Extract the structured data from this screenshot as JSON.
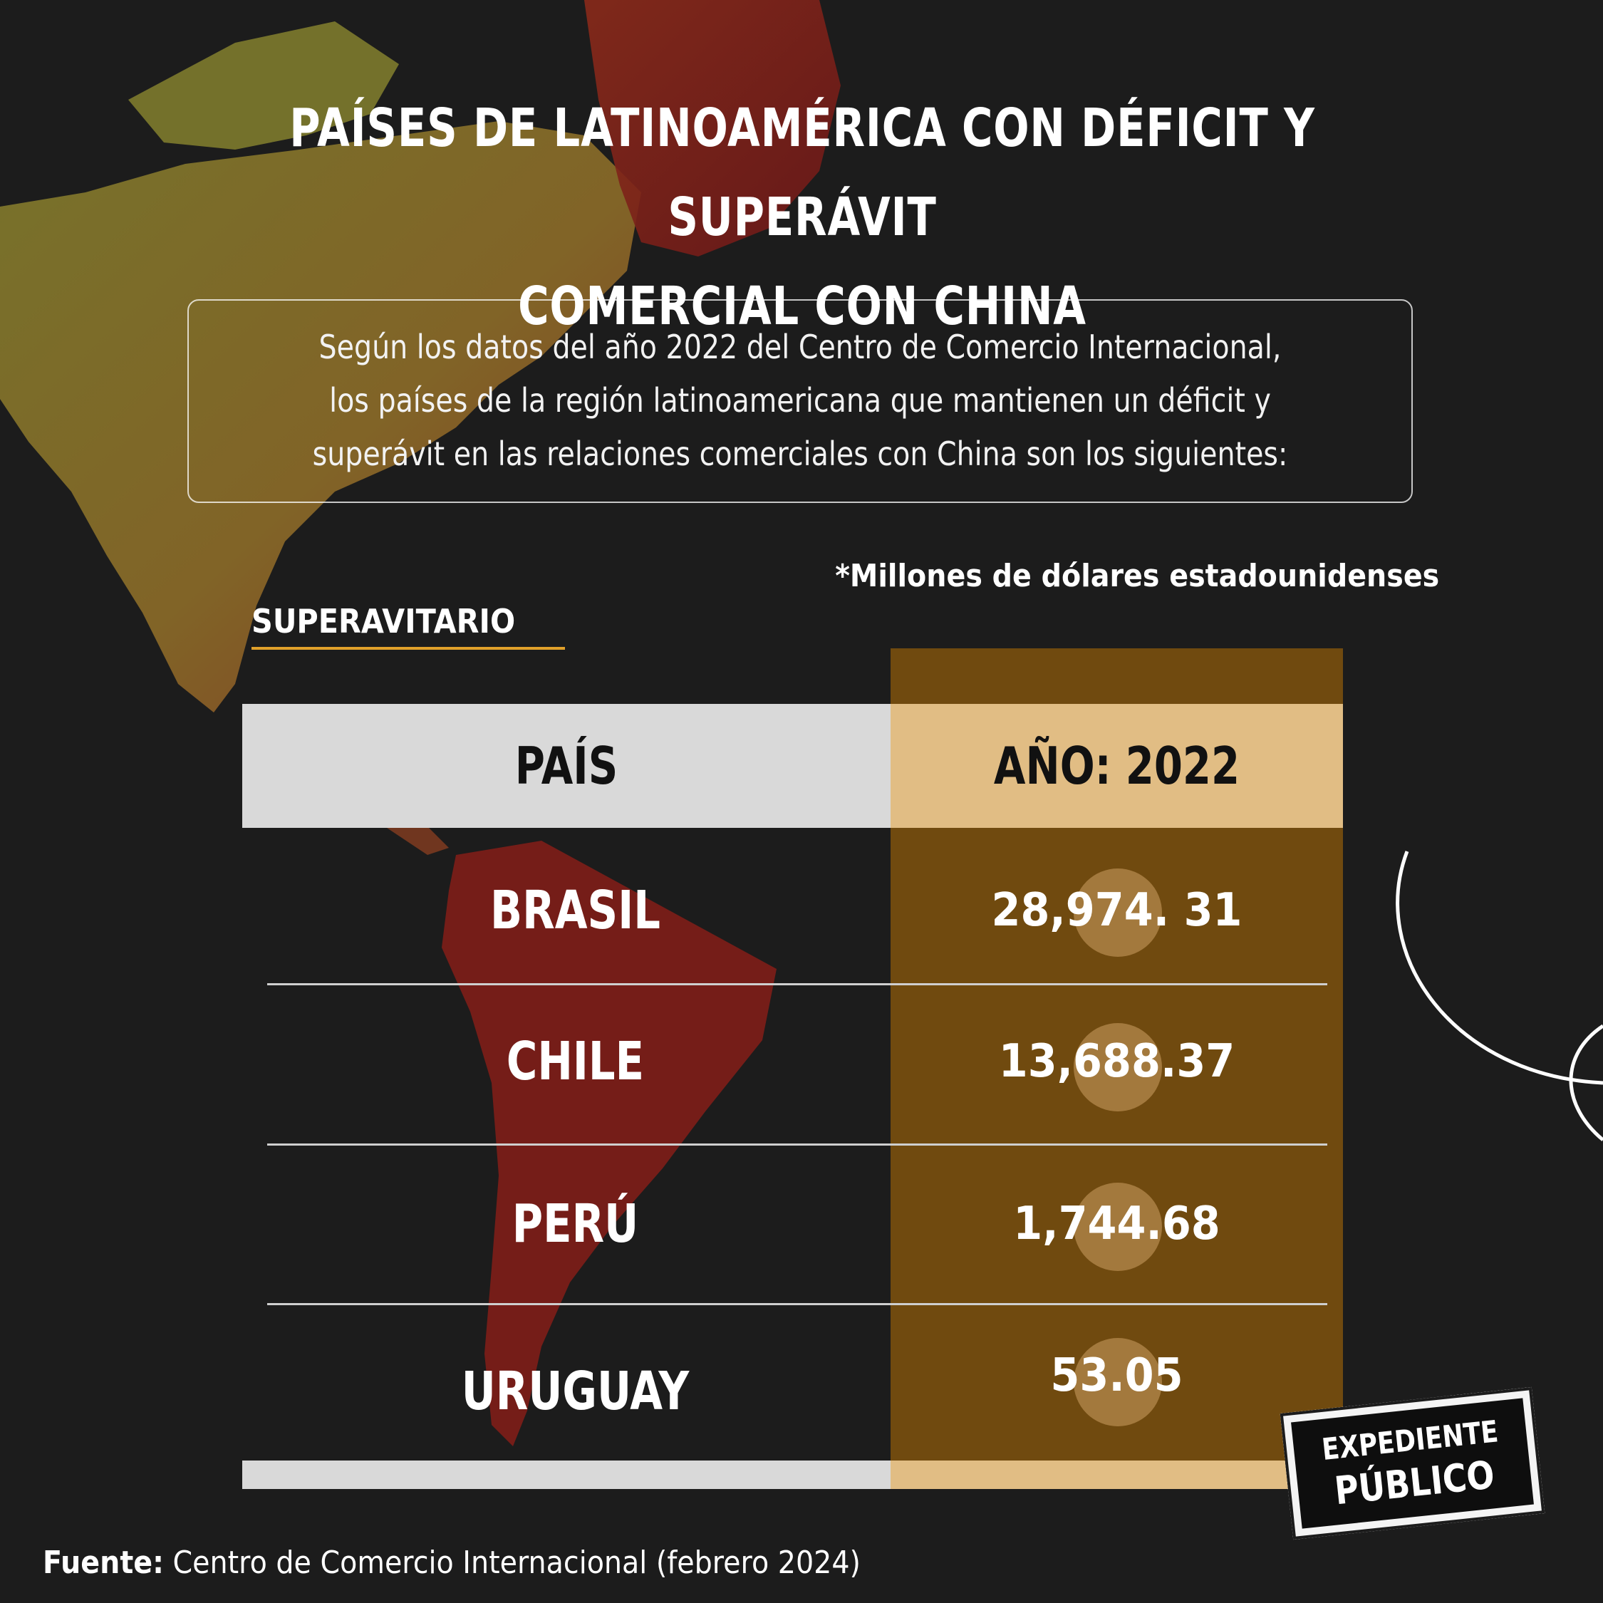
{
  "title": {
    "line1": "PAÍSES DE LATINOAMÉRICA CON DÉFICIT Y SUPERÁVIT",
    "line2": "COMERCIAL CON CHINA"
  },
  "intro": "Según los datos del año 2022 del Centro de Comercio Internacional,\nlos países de la región latinoamericana que mantienen un déficit y\nsuperávit en las relaciones comerciales con China son los siguientes:",
  "units_note": "*Millones de dólares estadounidenses",
  "section_label": "SUPERAVITARIO",
  "source": {
    "label": "Fuente:",
    "text": " Centro de Comercio Internacional (febrero 2024)"
  },
  "logo": {
    "line1": "EXPEDIENTE",
    "line2": "PÚBLICO"
  },
  "colors": {
    "background": "#1c1c1c",
    "value_column": "#704a0f",
    "value_header": "#e1bd84",
    "country_header": "#d9d9d9",
    "accent_underline": "#e0a02a"
  },
  "chart_data": {
    "type": "table",
    "columns": [
      "PAÍS",
      "AÑO: 2022"
    ],
    "rows": [
      {
        "country": "BRASIL",
        "value_label": "28,974. 31",
        "value": 28974.31
      },
      {
        "country": "CHILE",
        "value_label": "13,688.37",
        "value": 13688.37
      },
      {
        "country": "PERÚ",
        "value_label": "1,744.68",
        "value": 1744.68
      },
      {
        "country": "URUGUAY",
        "value_label": "53.05",
        "value": 53.05
      }
    ]
  }
}
